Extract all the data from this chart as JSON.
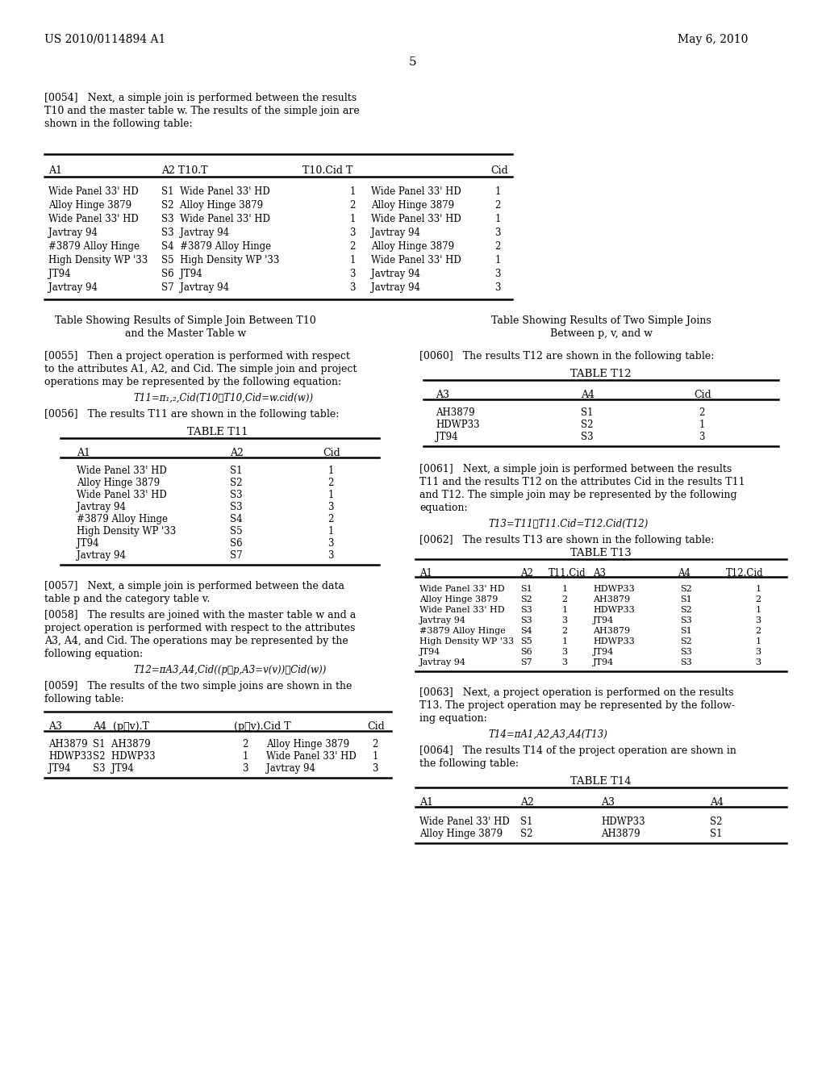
{
  "background_color": "#ffffff",
  "header_left": "US 2010/0114894 A1",
  "header_right": "May 6, 2010",
  "page_number": "5",
  "table11_rows": [
    [
      "Wide Panel 33' HD",
      "S1",
      "1"
    ],
    [
      "Alloy Hinge 3879",
      "S2",
      "2"
    ],
    [
      "Wide Panel 33' HD",
      "S3",
      "1"
    ],
    [
      "Javtray 94",
      "S3",
      "3"
    ],
    [
      "#3879 Alloy Hinge",
      "S4",
      "2"
    ],
    [
      "High Density WP '33",
      "S5",
      "1"
    ],
    [
      "JT94",
      "S6",
      "3"
    ],
    [
      "Javtray 94",
      "S7",
      "3"
    ]
  ],
  "table12_rows": [
    [
      "AH3879",
      "S1",
      "2"
    ],
    [
      "HDWP33",
      "S2",
      "1"
    ],
    [
      "JT94",
      "S3",
      "3"
    ]
  ],
  "table14_rows": [
    [
      "Wide Panel 33' HD",
      "S1",
      "HDWP33",
      "S2"
    ],
    [
      "Alloy Hinge 3879",
      "S2",
      "AH3879",
      "S1"
    ]
  ]
}
